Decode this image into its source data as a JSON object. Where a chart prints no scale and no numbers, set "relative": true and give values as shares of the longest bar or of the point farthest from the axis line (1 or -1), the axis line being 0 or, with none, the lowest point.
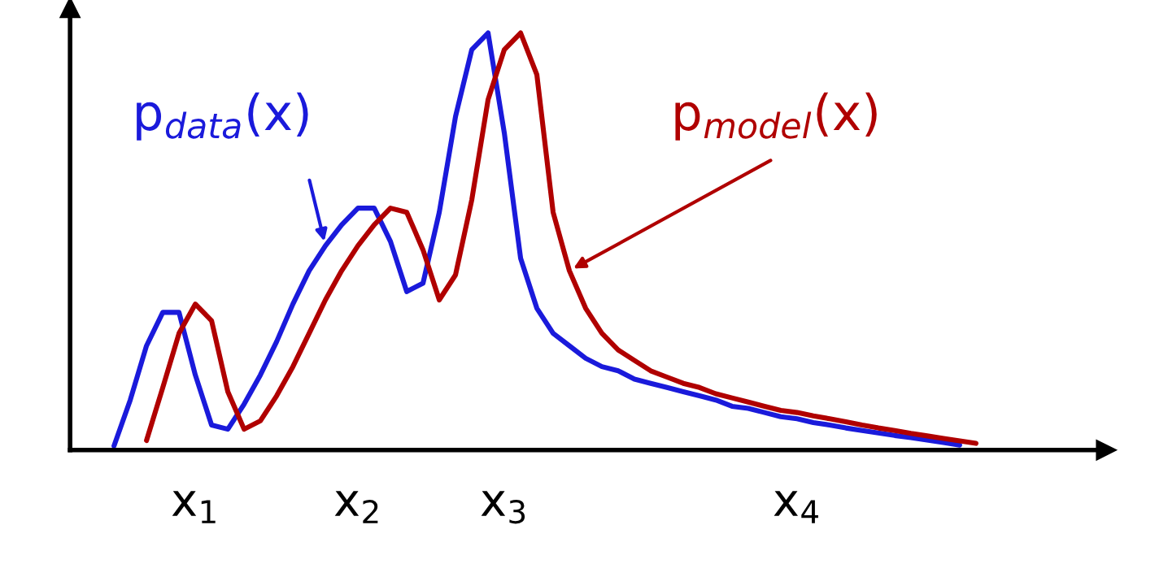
{
  "chart_data": {
    "type": "line",
    "relative": true,
    "legend": false,
    "marker": "none",
    "line_style": "solid",
    "tick_labels": "x",
    "categories": [
      null,
      null,
      null,
      null,
      null,
      "x$_{1}$",
      null,
      null,
      null,
      null,
      null,
      null,
      null,
      null,
      null,
      "x$_{2}$",
      null,
      null,
      null,
      null,
      null,
      null,
      null,
      null,
      "x$_{3}$",
      null,
      null,
      null,
      null,
      null,
      null,
      null,
      null,
      null,
      null,
      null,
      null,
      null,
      null,
      null,
      null,
      null,
      "x$_{4}$",
      null,
      null,
      null,
      null,
      null,
      null,
      null,
      null,
      null,
      null,
      null,
      null
    ],
    "series": [
      {
        "name": "p$_{data}$(x)",
        "color": "#1a1adb",
        "values": [
          0.01,
          0.12,
          0.25,
          0.33,
          0.33,
          0.18,
          0.06,
          0.05,
          0.11,
          0.18,
          0.26,
          0.35,
          0.43,
          0.49,
          0.54,
          0.58,
          0.58,
          0.5,
          0.38,
          0.4,
          0.57,
          0.8,
          0.96,
          1,
          0.76,
          0.46,
          0.34,
          0.28,
          0.25,
          0.22,
          0.2,
          0.19,
          0.17,
          0.16,
          0.15,
          0.14,
          0.13,
          0.12,
          0.105,
          0.1,
          0.09,
          0.08,
          0.075,
          0.066,
          0.06,
          0.053,
          0.047,
          0.041,
          0.035,
          0.03,
          0.024,
          0.018,
          0.012,
          null,
          null
        ]
      },
      {
        "name": "p$_{model}$(x)",
        "color": "#b00000",
        "values": [
          null,
          null,
          0.023,
          0.15,
          0.28,
          0.35,
          0.31,
          0.14,
          0.05,
          0.07,
          0.13,
          0.2,
          0.28,
          0.36,
          0.43,
          0.49,
          0.54,
          0.58,
          0.57,
          0.48,
          0.36,
          0.42,
          0.6,
          0.84,
          0.96,
          1,
          0.9,
          0.57,
          0.43,
          0.34,
          0.28,
          0.24,
          0.215,
          0.19,
          0.175,
          0.16,
          0.15,
          0.135,
          0.125,
          0.115,
          0.105,
          0.095,
          0.09,
          0.082,
          0.075,
          0.068,
          0.06,
          0.053,
          0.047,
          0.04,
          0.034,
          0.028,
          0.022,
          0.016,
          null
        ]
      }
    ]
  }
}
